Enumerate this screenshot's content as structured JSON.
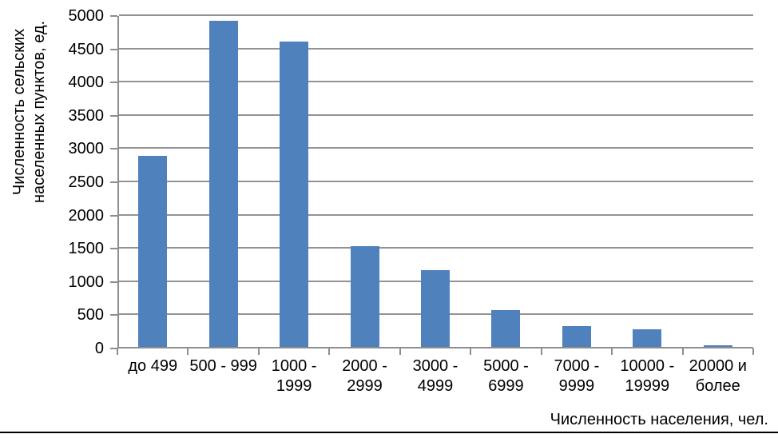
{
  "chart_data": {
    "type": "bar",
    "title": "",
    "categories": [
      "до 499",
      "500 - 999",
      "1000 - 1999",
      "2000 - 2999",
      "3000 - 4999",
      "5000 - 6999",
      "7000 - 9999",
      "10000 - 19999",
      "20000 и более"
    ],
    "category_lines": [
      [
        "до 499"
      ],
      [
        "500 - 999"
      ],
      [
        "1000 -",
        "1999"
      ],
      [
        "2000 -",
        "2999"
      ],
      [
        "3000 -",
        "4999"
      ],
      [
        "5000 -",
        "6999"
      ],
      [
        "7000 -",
        "9999"
      ],
      [
        "10000 -",
        "19999"
      ],
      [
        "20000 и",
        "более"
      ]
    ],
    "values": [
      2870,
      4900,
      4590,
      1520,
      1150,
      550,
      315,
      260,
      30
    ],
    "xlabel": "Численность населения, чел.",
    "ylabel": "Численность сельских населенных пунктов, ед.",
    "ylabel_lines": [
      "Численность сельских",
      "населенных пунктов, ед."
    ],
    "ylim": [
      0,
      5000
    ],
    "ytick_step": 500,
    "ytick_labels": [
      "0",
      "500",
      "1000",
      "1500",
      "2000",
      "2500",
      "3000",
      "3500",
      "4000",
      "4500",
      "5000"
    ],
    "grid": true,
    "legend_position": "none",
    "colors": {
      "bar": "#4f81bd",
      "axis": "#8e8e8e",
      "gridline": "#939393",
      "text": "#000000",
      "bottom_rule": "#000000",
      "background": "#ffffff"
    }
  }
}
